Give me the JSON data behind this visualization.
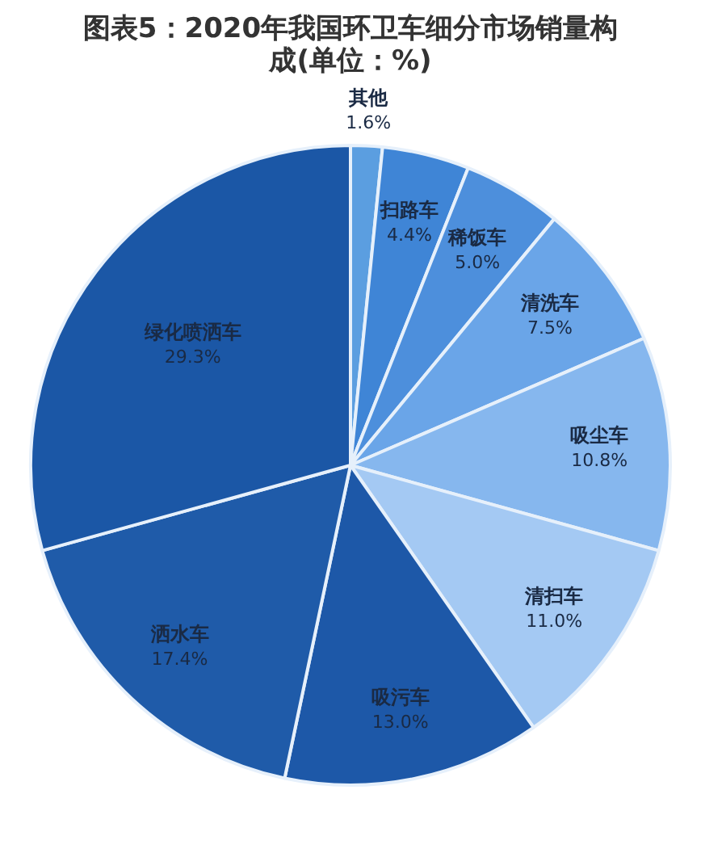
{
  "chart_data": {
    "type": "pie",
    "title": "图表5：2020年我国环卫车细分市场销量构成(单位：%)",
    "categories": [
      "其他",
      "扫路车",
      "稀饭车",
      "清洗车",
      "吸尘车",
      "清扫车",
      "吸污车",
      "洒水车",
      "绿化喷洒车"
    ],
    "values": [
      1.6,
      4.4,
      5.0,
      7.5,
      10.8,
      11.0,
      13.0,
      17.4,
      29.3
    ],
    "colors": [
      "#5b9ee0",
      "#3f85d6",
      "#4d8fdc",
      "#6aa5e8",
      "#86b7ee",
      "#a4c9f3",
      "#1d58a8",
      "#1f5ba9",
      "#1b57a6"
    ],
    "value_labels": [
      "1.6%",
      "4.4%",
      "5.0%",
      "7.5%",
      "10.8%",
      "11.0%",
      "13.0%",
      "17.4%",
      "29.3%"
    ],
    "legend": false
  }
}
